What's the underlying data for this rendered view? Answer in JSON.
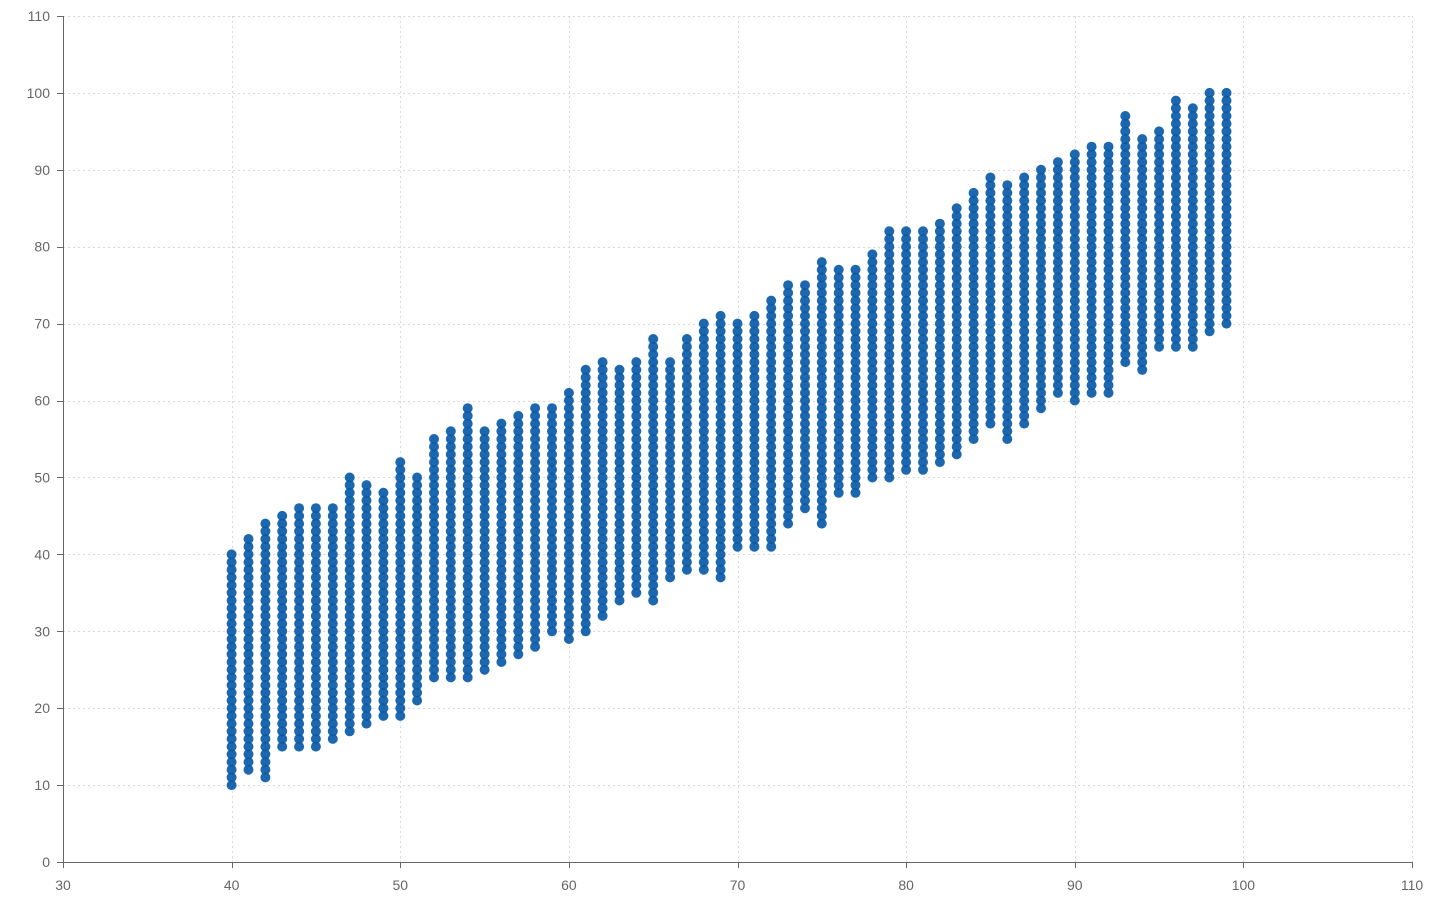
{
  "chart_data": {
    "type": "scatter",
    "title": "",
    "xlabel": "",
    "ylabel": "",
    "xlim": [
      30,
      110
    ],
    "ylim": [
      0,
      110
    ],
    "x_ticks": [
      30,
      40,
      50,
      60,
      70,
      80,
      90,
      100,
      110
    ],
    "y_ticks": [
      0,
      10,
      20,
      30,
      40,
      50,
      60,
      70,
      80,
      90,
      100,
      110
    ],
    "x_tick_labels": [
      "30",
      "40",
      "50",
      "60",
      "70",
      "80",
      "90",
      "100",
      "110"
    ],
    "y_tick_labels": [
      "0",
      "10",
      "20",
      "30",
      "40",
      "50",
      "60",
      "70",
      "80",
      "90",
      "100",
      "110"
    ],
    "grid": true,
    "legend": "none",
    "point_color": "#0a5aa8",
    "series": [
      {
        "x": [
          40,
          41,
          42,
          43,
          44,
          45,
          46,
          47,
          48,
          49,
          50,
          51,
          52,
          53,
          54,
          55,
          56,
          57,
          58,
          59,
          60,
          61,
          62,
          63,
          64,
          65,
          66,
          67,
          68,
          69,
          70,
          71,
          72,
          73,
          74,
          75,
          76,
          77,
          78,
          79,
          80,
          81,
          82,
          83,
          84,
          85,
          86,
          87,
          88,
          89,
          90,
          91,
          92,
          93,
          94,
          95,
          96,
          97,
          98,
          99
        ],
        "y_min": [
          10,
          12,
          11,
          15,
          15,
          15,
          16,
          17,
          18,
          19,
          19,
          21,
          24,
          24,
          24,
          25,
          26,
          27,
          28,
          30,
          29,
          30,
          32,
          34,
          35,
          34,
          37,
          38,
          38,
          37,
          41,
          41,
          41,
          44,
          46,
          44,
          48,
          48,
          50,
          50,
          51,
          51,
          52,
          53,
          55,
          57,
          55,
          57,
          59,
          61,
          60,
          61,
          61,
          65,
          64,
          67,
          67,
          67,
          69,
          70
        ],
        "y_max": [
          40,
          42,
          44,
          45,
          46,
          46,
          46,
          50,
          49,
          48,
          52,
          50,
          55,
          56,
          59,
          56,
          57,
          58,
          59,
          59,
          61,
          64,
          65,
          64,
          65,
          68,
          65,
          68,
          70,
          71,
          70,
          71,
          73,
          75,
          75,
          78,
          77,
          77,
          79,
          82,
          82,
          82,
          83,
          85,
          87,
          89,
          88,
          89,
          90,
          91,
          92,
          93,
          93,
          97,
          94,
          95,
          99,
          98,
          100,
          100
        ]
      }
    ]
  }
}
